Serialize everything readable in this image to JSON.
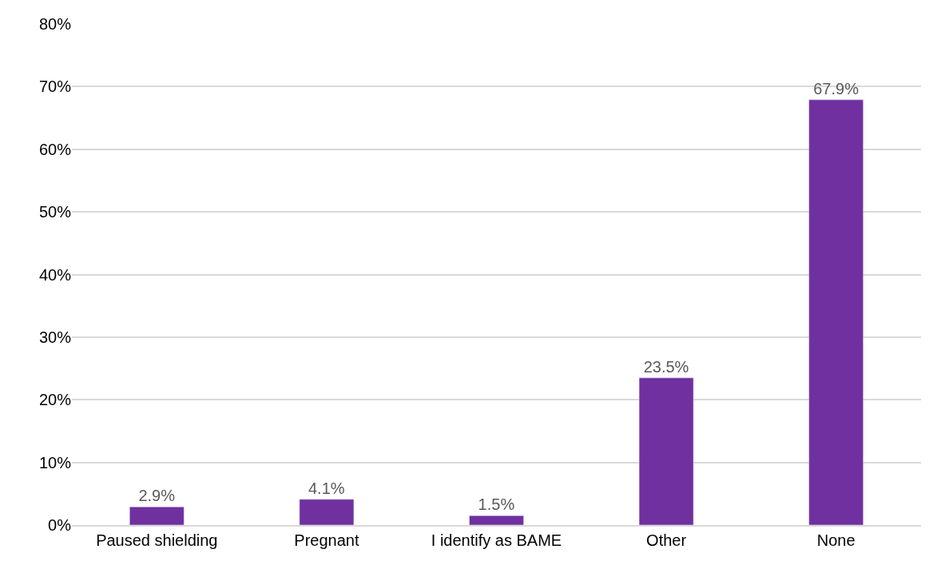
{
  "chart_data": {
    "type": "bar",
    "categories": [
      "Paused shielding",
      "Pregnant",
      "I identify as BAME",
      "Other",
      "None"
    ],
    "values": [
      2.9,
      4.1,
      1.5,
      23.5,
      67.9
    ],
    "value_labels": [
      "2.9%",
      "4.1%",
      "1.5%",
      "23.5%",
      "67.9%"
    ],
    "color": "#7030a0",
    "ylim": [
      0,
      80
    ],
    "yticks": [
      {
        "value": 0,
        "label": "0%"
      },
      {
        "value": 10,
        "label": "10%"
      },
      {
        "value": 20,
        "label": "20%"
      },
      {
        "value": 30,
        "label": "30%"
      },
      {
        "value": 40,
        "label": "40%"
      },
      {
        "value": 50,
        "label": "50%"
      },
      {
        "value": 60,
        "label": "60%"
      },
      {
        "value": 70,
        "label": "70%"
      },
      {
        "value": 80,
        "label": "80%"
      }
    ],
    "grid": "y",
    "legend": false
  }
}
